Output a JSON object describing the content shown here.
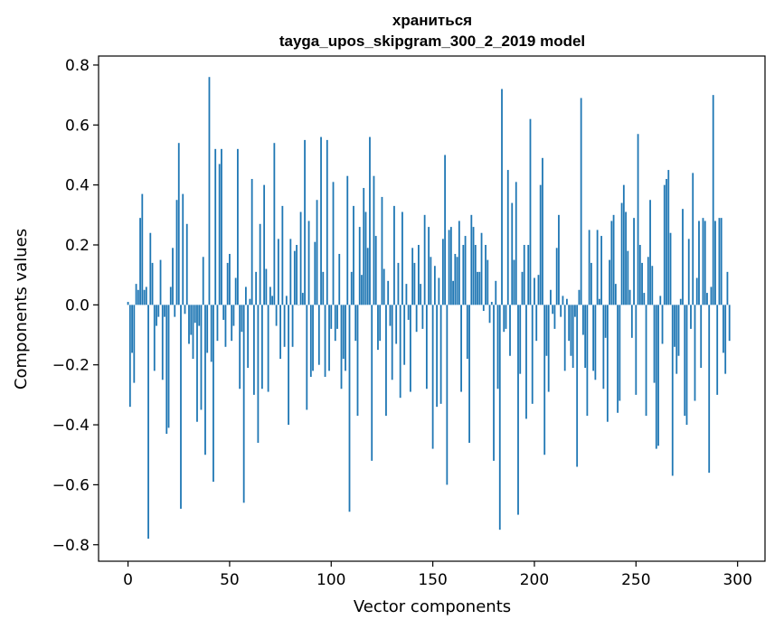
{
  "chart_data": {
    "type": "bar",
    "title": "храниться",
    "subtitle": "tayga_upos_skipgram_300_2_2019 model",
    "xlabel": "Vector components",
    "ylabel": "Components values",
    "xlim": [
      -14.5,
      313.5
    ],
    "ylim": [
      -0.855,
      0.83
    ],
    "xticks": [
      0,
      50,
      100,
      150,
      200,
      250,
      300
    ],
    "yticks": [
      -0.8,
      -0.6,
      -0.4,
      -0.2,
      0.0,
      0.2,
      0.4,
      0.6,
      0.8
    ],
    "ytick_labels": [
      "−0.8",
      "−0.6",
      "−0.4",
      "−0.2",
      "0.0",
      "0.2",
      "0.4",
      "0.6",
      "0.8"
    ],
    "bar_color": "#1f77b4",
    "series": [
      {
        "name": "components",
        "values": [
          0.01,
          -0.34,
          -0.16,
          -0.26,
          0.07,
          0.05,
          0.29,
          0.37,
          0.05,
          0.06,
          -0.78,
          0.24,
          0.14,
          -0.22,
          -0.07,
          -0.04,
          0.15,
          -0.25,
          -0.04,
          -0.43,
          -0.41,
          0.06,
          0.19,
          -0.04,
          0.35,
          0.54,
          -0.68,
          0.37,
          -0.03,
          0.27,
          -0.13,
          -0.1,
          -0.18,
          -0.06,
          -0.39,
          -0.07,
          -0.35,
          0.16,
          -0.5,
          -0.16,
          0.76,
          -0.19,
          -0.59,
          0.52,
          -0.12,
          0.47,
          0.52,
          -0.05,
          -0.14,
          0.14,
          0.17,
          -0.12,
          -0.07,
          0.09,
          0.52,
          -0.28,
          -0.09,
          -0.66,
          0.06,
          -0.21,
          0.02,
          0.42,
          -0.3,
          0.11,
          -0.46,
          0.27,
          -0.28,
          0.4,
          0.12,
          -0.29,
          0.06,
          0.03,
          0.54,
          -0.07,
          0.22,
          -0.18,
          0.33,
          -0.14,
          0.03,
          -0.4,
          0.22,
          -0.14,
          0.18,
          0.2,
          0.0,
          0.31,
          0.04,
          0.55,
          -0.35,
          0.28,
          -0.24,
          -0.22,
          0.21,
          0.35,
          -0.2,
          0.56,
          0.11,
          -0.24,
          0.55,
          -0.22,
          -0.08,
          0.41,
          -0.12,
          -0.08,
          0.17,
          -0.28,
          -0.18,
          -0.22,
          0.43,
          -0.69,
          0.11,
          0.33,
          -0.12,
          -0.37,
          0.26,
          0.1,
          0.39,
          0.31,
          0.19,
          0.56,
          -0.52,
          0.43,
          0.23,
          -0.15,
          -0.12,
          0.36,
          0.12,
          -0.37,
          0.08,
          -0.07,
          -0.25,
          0.33,
          -0.13,
          0.14,
          -0.31,
          0.31,
          -0.2,
          0.07,
          -0.05,
          -0.29,
          0.19,
          0.14,
          -0.09,
          0.2,
          0.07,
          -0.08,
          0.3,
          -0.28,
          0.26,
          0.16,
          -0.48,
          0.13,
          -0.34,
          0.09,
          -0.33,
          0.22,
          0.5,
          -0.6,
          0.25,
          0.26,
          0.08,
          0.17,
          0.16,
          0.28,
          -0.29,
          0.2,
          0.23,
          -0.18,
          -0.46,
          0.3,
          0.26,
          0.2,
          0.11,
          0.11,
          0.24,
          -0.02,
          0.2,
          0.15,
          -0.06,
          0.01,
          -0.52,
          0.08,
          -0.28,
          -0.75,
          0.72,
          -0.09,
          -0.08,
          0.45,
          -0.17,
          0.34,
          0.15,
          0.41,
          -0.7,
          -0.23,
          0.11,
          0.2,
          -0.38,
          0.2,
          0.62,
          -0.33,
          0.09,
          -0.12,
          0.1,
          0.4,
          0.49,
          -0.5,
          -0.17,
          -0.29,
          0.05,
          -0.03,
          -0.08,
          0.19,
          0.3,
          -0.04,
          0.03,
          -0.22,
          0.02,
          -0.12,
          -0.17,
          -0.21,
          -0.04,
          -0.54,
          0.05,
          0.69,
          -0.1,
          -0.21,
          -0.37,
          0.25,
          0.14,
          -0.22,
          -0.25,
          0.25,
          0.02,
          0.23,
          -0.28,
          -0.11,
          -0.39,
          0.15,
          0.28,
          0.3,
          0.07,
          -0.36,
          -0.32,
          0.34,
          0.4,
          0.31,
          0.18,
          0.05,
          -0.11,
          0.29,
          -0.3,
          0.57,
          0.2,
          0.14,
          0.04,
          -0.37,
          0.16,
          0.35,
          0.13,
          -0.26,
          -0.48,
          -0.47,
          0.03,
          -0.13,
          0.4,
          0.42,
          0.45,
          0.24,
          -0.57,
          -0.14,
          -0.23,
          -0.17,
          0.02,
          0.32,
          -0.37,
          -0.4,
          0.22,
          -0.08,
          0.44,
          -0.32,
          0.09,
          0.28,
          -0.21,
          0.29,
          0.28,
          0.04,
          -0.56,
          0.06,
          0.7,
          0.28,
          -0.3,
          0.29,
          0.29,
          -0.16,
          -0.23,
          0.11,
          -0.12
        ]
      }
    ]
  }
}
